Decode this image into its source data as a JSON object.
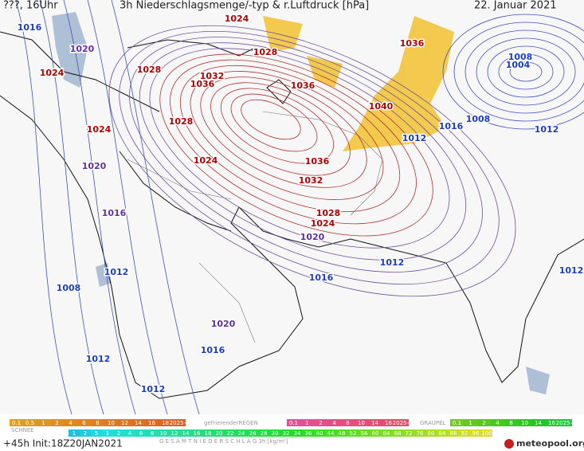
{
  "header": {
    "run_label": "???, 16Uhr",
    "title": "3h Niederschlagsmenge/-typ & r.Luftdruck [hPa]",
    "date": "22. Januar 2021"
  },
  "isobar_labels": [
    "1016",
    "1020",
    "1024",
    "1028",
    "1024",
    "1028",
    "1036",
    "1032",
    "1036",
    "1036",
    "1040",
    "1028",
    "1024",
    "1020",
    "1024",
    "1036",
    "1032",
    "1016",
    "1028",
    "1024",
    "1020",
    "1012",
    "1008",
    "1016",
    "1012",
    "1020",
    "1016",
    "1012",
    "1012",
    "1008",
    "1004",
    "1008",
    "1016",
    "1012",
    "1012",
    "1012"
  ],
  "legend": {
    "snow_scale": [
      "0.1",
      "0.5",
      "1",
      "2",
      "4",
      "6",
      "8",
      "10",
      "12",
      "14",
      "16",
      "18",
      "2025+"
    ],
    "freezing_rain_label": "gefrierenderREGEN",
    "freezing_rain_scale": [
      "0.1",
      "1",
      "2",
      "4",
      "8",
      "10",
      "14",
      "16",
      "2025+"
    ],
    "graupel_label": "GRAUPEL",
    "graupel_scale": [
      "0.1",
      "1",
      "2",
      "4",
      "8",
      "10",
      "14",
      "16",
      "2025+"
    ],
    "snow_label": "SCHNEE",
    "total_scale": [
      "1",
      "2",
      "5",
      "1",
      "2",
      "4",
      "6",
      "8",
      "10",
      "12",
      "14",
      "16",
      "18",
      "20",
      "22",
      "24",
      "26",
      "28",
      "30",
      "32",
      "34",
      "36",
      "40",
      "44",
      "48",
      "52",
      "56",
      "60",
      "64",
      "68",
      "72",
      "76",
      "80",
      "84",
      "88",
      "92",
      "96",
      "100"
    ],
    "total_label": "G E S A M T N I E D E R S C H L A G  3h  [kg/m²]"
  },
  "footer": {
    "forecast": "+45h Init:18Z20JAN2021",
    "brand": "meteopool.org"
  }
}
